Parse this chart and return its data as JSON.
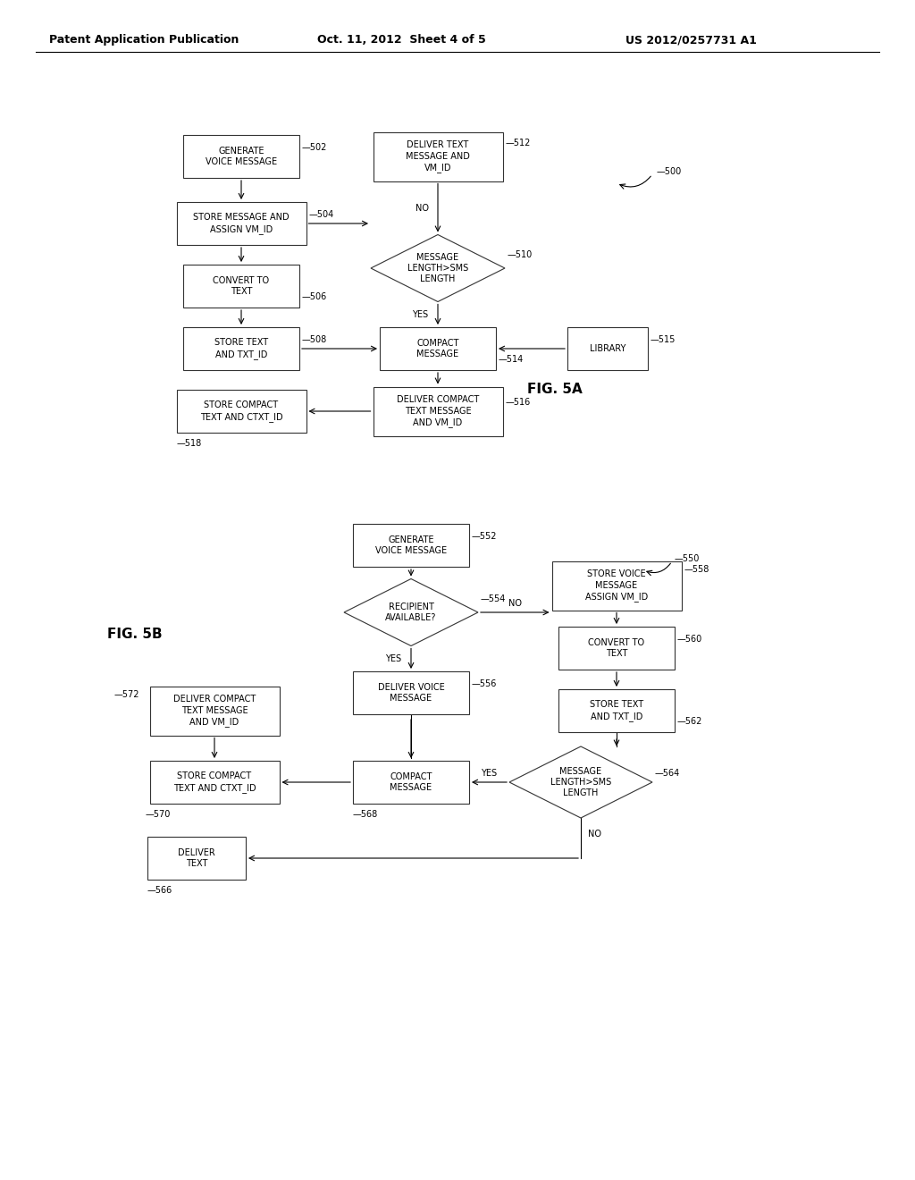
{
  "background_color": "#ffffff",
  "header_text": "Patent Application Publication",
  "header_date": "Oct. 11, 2012  Sheet 4 of 5",
  "header_patent": "US 2012/0257731 A1",
  "fig_label_5a": "FIG. 5A",
  "fig_label_5b": "FIG. 5B"
}
